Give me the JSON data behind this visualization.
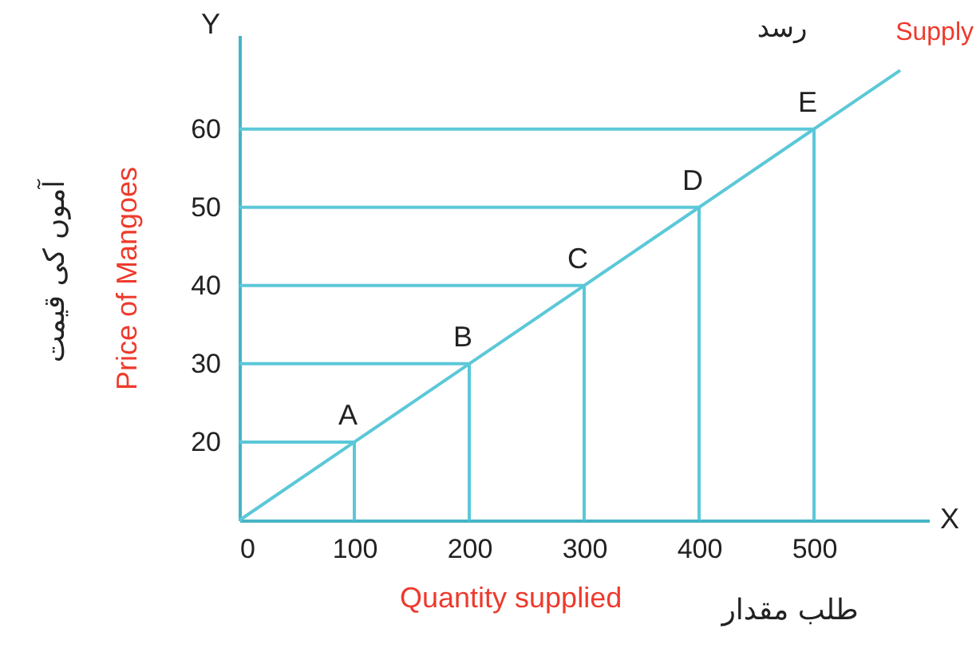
{
  "chart_data": {
    "type": "line",
    "xlabel": "Quantity supplied",
    "ylabel": "Price of Mangoes",
    "xlim": [
      0,
      600
    ],
    "ylim": [
      10,
      72
    ],
    "xticks": [
      0,
      100,
      200,
      300,
      400,
      500
    ],
    "yticks": [
      20,
      30,
      40,
      50,
      60
    ],
    "grid": false,
    "series": [
      {
        "name": "Supply",
        "color": "#5bc8d8",
        "x": [
          0,
          100,
          200,
          300,
          400,
          500,
          575
        ],
        "values": [
          10,
          20,
          30,
          40,
          50,
          60,
          67.5
        ]
      },
      {
        "color": "#5bc8d8",
        "x": [
          0,
          100,
          100
        ],
        "values": [
          20,
          20,
          10
        ]
      },
      {
        "color": "#5bc8d8",
        "x": [
          0,
          200,
          200
        ],
        "values": [
          30,
          30,
          10
        ]
      },
      {
        "color": "#5bc8d8",
        "x": [
          0,
          300,
          300
        ],
        "values": [
          40,
          40,
          10
        ]
      },
      {
        "color": "#5bc8d8",
        "x": [
          0,
          400,
          400
        ],
        "values": [
          50,
          50,
          10
        ]
      },
      {
        "color": "#5bc8d8",
        "x": [
          0,
          500,
          500
        ],
        "values": [
          60,
          60,
          10
        ]
      }
    ],
    "annotations": [
      {
        "text": "A",
        "x": 100,
        "y": 20
      },
      {
        "text": "B",
        "x": 200,
        "y": 30
      },
      {
        "text": "C",
        "x": 300,
        "y": 40
      },
      {
        "text": "D",
        "x": 400,
        "y": 50
      },
      {
        "text": "E",
        "x": 500,
        "y": 60
      },
      "Y",
      "X",
      "رسد",
      "آموں کی قیمت",
      "طلب مقدار"
    ]
  }
}
